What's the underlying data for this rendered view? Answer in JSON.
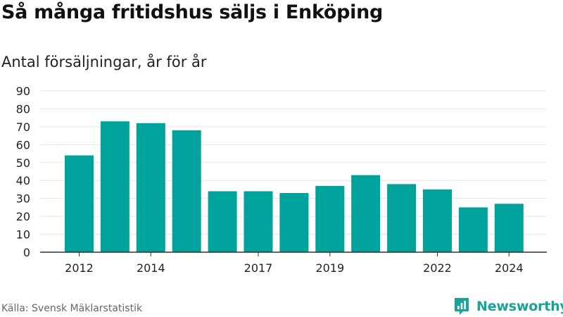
{
  "title": "Så många fritidshus säljs i Enköping",
  "subtitle": "Antal försäljningar, år för år",
  "source": "Källa: Svensk Mäklarstatistik",
  "brand": "Newsworthy",
  "colors": {
    "bar": "#00a39b",
    "grid": "#e3e3e3",
    "axis": "#333333",
    "brand": "#17a396"
  },
  "chart_data": {
    "type": "bar",
    "x": [
      2012,
      2013,
      2014,
      2015,
      2016,
      2017,
      2018,
      2019,
      2020,
      2021,
      2022,
      2023,
      2024
    ],
    "values": [
      54,
      73,
      72,
      68,
      34,
      34,
      33,
      37,
      43,
      38,
      35,
      25,
      27
    ],
    "x_tick_labels": [
      "2012",
      "2014",
      "2017",
      "2019",
      "2022",
      "2024"
    ],
    "y_ticks": [
      0,
      10,
      20,
      30,
      40,
      50,
      60,
      70,
      80,
      90
    ],
    "ylim": [
      0,
      90
    ],
    "grid": true,
    "title": "Så många fritidshus säljs i Enköping",
    "subtitle": "Antal försäljningar, år för år",
    "xlabel": "",
    "ylabel": ""
  }
}
